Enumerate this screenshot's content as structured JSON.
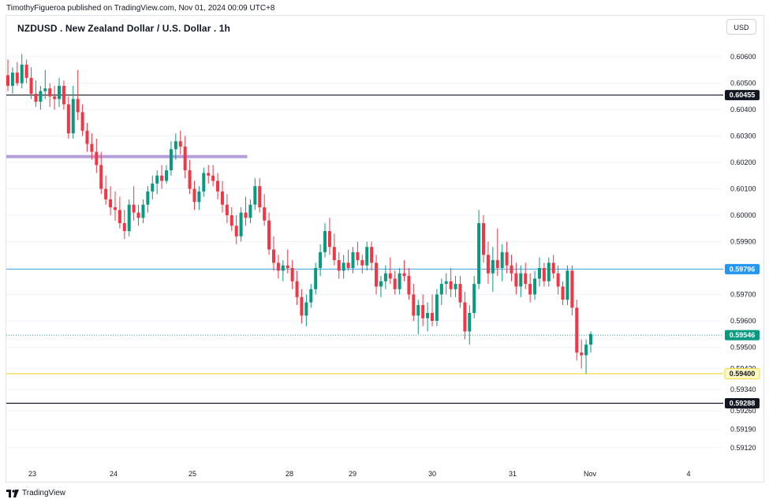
{
  "header": {
    "publish_text": "TimothyFigueroa published on TradingView.com, Nov 01, 2024 00:09 UTC+8",
    "title": "NZDUSD . New Zealand Dollar / U.S. Dollar . 1h",
    "currency": "USD"
  },
  "footer": {
    "brand": "TradingView"
  },
  "colors": {
    "up": "#089981",
    "down": "#f23645",
    "grid": "#f0f3fa",
    "axis_text": "#131722"
  },
  "chart_data": {
    "type": "candlestick",
    "title": "NZDUSD . New Zealand Dollar / U.S. Dollar . 1h",
    "ylim": [
      0.5906,
      0.6063
    ],
    "y_ticks": [
      "0.60600",
      "0.60500",
      "0.60400",
      "0.60300",
      "0.60200",
      "0.60100",
      "0.60000",
      "0.59900",
      "0.59700",
      "0.59600",
      "0.59500",
      "0.59420",
      "0.59340",
      "0.59260",
      "0.59190",
      "0.59120"
    ],
    "x_labels": [
      "23",
      "24",
      "25",
      "28",
      "29",
      "30",
      "31",
      "Nov",
      "4"
    ],
    "horizontal_lines": [
      {
        "name": "resistance-black",
        "price": 0.60455,
        "label": "0.60455",
        "color": "#131722",
        "label_bg": "#131722",
        "label_color": "#ffffff",
        "style": "solid"
      },
      {
        "name": "mid-blue",
        "price": 0.59796,
        "label": "0.59796",
        "color": "#5ab4e6",
        "label_bg": "#2196f3",
        "label_color": "#ffffff",
        "style": "solid"
      },
      {
        "name": "current-price",
        "price": 0.59546,
        "label": "0.59546",
        "color": "#26a69a",
        "label_bg": "#089981",
        "label_color": "#ffffff",
        "style": "dotted"
      },
      {
        "name": "support-yellow",
        "price": 0.594,
        "label": "0.59400",
        "color": "#f5d742",
        "label_bg": "#fff9c4",
        "label_color": "#131722",
        "style": "solid"
      },
      {
        "name": "support-black",
        "price": 0.59288,
        "label": "0.59288",
        "color": "#131722",
        "label_bg": "#131722",
        "label_color": "#ffffff",
        "style": "solid"
      }
    ],
    "segments": [
      {
        "name": "purple-zone",
        "price": 0.60222,
        "from_bar": 0,
        "to_bar": 51,
        "color": "#b39ddb"
      }
    ],
    "candles_ohlc": [
      [
        0.6053,
        0.6059,
        0.6047,
        0.6049
      ],
      [
        0.6049,
        0.6056,
        0.6046,
        0.6054
      ],
      [
        0.6054,
        0.6058,
        0.6049,
        0.605
      ],
      [
        0.605,
        0.6061,
        0.6048,
        0.6057
      ],
      [
        0.6057,
        0.6059,
        0.605,
        0.6052
      ],
      [
        0.6052,
        0.6056,
        0.6044,
        0.6046
      ],
      [
        0.6046,
        0.6051,
        0.6041,
        0.6043
      ],
      [
        0.6043,
        0.6049,
        0.604,
        0.6047
      ],
      [
        0.6047,
        0.6055,
        0.6044,
        0.6048
      ],
      [
        0.6048,
        0.605,
        0.6041,
        0.6045
      ],
      [
        0.6045,
        0.6049,
        0.604,
        0.6044
      ],
      [
        0.6044,
        0.6052,
        0.6041,
        0.6049
      ],
      [
        0.6049,
        0.6051,
        0.604,
        0.6042
      ],
      [
        0.6042,
        0.6045,
        0.6029,
        0.6031
      ],
      [
        0.6031,
        0.6049,
        0.6029,
        0.6044
      ],
      [
        0.6044,
        0.6055,
        0.6036,
        0.6039
      ],
      [
        0.6039,
        0.6042,
        0.603,
        0.6032
      ],
      [
        0.6032,
        0.6035,
        0.6024,
        0.6027
      ],
      [
        0.6027,
        0.6031,
        0.6021,
        0.6024
      ],
      [
        0.6024,
        0.6029,
        0.6016,
        0.6019
      ],
      [
        0.6019,
        0.6024,
        0.6008,
        0.601
      ],
      [
        0.601,
        0.6015,
        0.6004,
        0.6006
      ],
      [
        0.6006,
        0.6011,
        0.6,
        0.6003
      ],
      [
        0.6003,
        0.6009,
        0.5998,
        0.6002
      ],
      [
        0.6002,
        0.6007,
        0.5995,
        0.5997
      ],
      [
        0.5997,
        0.6002,
        0.5991,
        0.5994
      ],
      [
        0.5994,
        0.6006,
        0.5992,
        0.6004
      ],
      [
        0.6004,
        0.6011,
        0.5998,
        0.6001
      ],
      [
        0.6001,
        0.6004,
        0.5996,
        0.5999
      ],
      [
        0.5999,
        0.6006,
        0.5997,
        0.6004
      ],
      [
        0.6004,
        0.6011,
        0.6001,
        0.6009
      ],
      [
        0.6009,
        0.6015,
        0.6006,
        0.6012
      ],
      [
        0.6012,
        0.6017,
        0.6008,
        0.6015
      ],
      [
        0.6015,
        0.6019,
        0.601,
        0.6013
      ],
      [
        0.6013,
        0.6019,
        0.6012,
        0.6017
      ],
      [
        0.6017,
        0.6028,
        0.6015,
        0.6025
      ],
      [
        0.6025,
        0.6031,
        0.6021,
        0.6028
      ],
      [
        0.6028,
        0.6032,
        0.6023,
        0.6026
      ],
      [
        0.6026,
        0.603,
        0.6014,
        0.6017
      ],
      [
        0.6017,
        0.6021,
        0.6008,
        0.601
      ],
      [
        0.601,
        0.6013,
        0.6002,
        0.6005
      ],
      [
        0.6005,
        0.6011,
        0.6002,
        0.6009
      ],
      [
        0.6009,
        0.6018,
        0.6007,
        0.6016
      ],
      [
        0.6016,
        0.6019,
        0.6012,
        0.6015
      ],
      [
        0.6015,
        0.6019,
        0.6011,
        0.6013
      ],
      [
        0.6013,
        0.6016,
        0.6006,
        0.6009
      ],
      [
        0.6009,
        0.6013,
        0.6001,
        0.6004
      ],
      [
        0.6004,
        0.6008,
        0.5997,
        0.6
      ],
      [
        0.6,
        0.6003,
        0.5994,
        0.5996
      ],
      [
        0.5996,
        0.6,
        0.5989,
        0.5992
      ],
      [
        0.5992,
        0.6003,
        0.599,
        0.6001
      ],
      [
        0.6001,
        0.6007,
        0.5996,
        0.5999
      ],
      [
        0.5999,
        0.6006,
        0.5997,
        0.6004
      ],
      [
        0.6004,
        0.6014,
        0.6002,
        0.6011
      ],
      [
        0.6011,
        0.6014,
        0.6001,
        0.6003
      ],
      [
        0.6003,
        0.6008,
        0.5996,
        0.5998
      ],
      [
        0.5998,
        0.6001,
        0.5985,
        0.5987
      ],
      [
        0.5987,
        0.5992,
        0.5979,
        0.5982
      ],
      [
        0.5982,
        0.5985,
        0.5976,
        0.5979
      ],
      [
        0.5979,
        0.5983,
        0.5975,
        0.5981
      ],
      [
        0.5981,
        0.5987,
        0.5978,
        0.598
      ],
      [
        0.598,
        0.5983,
        0.5972,
        0.5975
      ],
      [
        0.5975,
        0.5979,
        0.5966,
        0.5969
      ],
      [
        0.5969,
        0.5972,
        0.5959,
        0.5962
      ],
      [
        0.5962,
        0.597,
        0.5958,
        0.5967
      ],
      [
        0.5967,
        0.5974,
        0.5965,
        0.5972
      ],
      [
        0.5972,
        0.5982,
        0.597,
        0.598
      ],
      [
        0.598,
        0.5989,
        0.5977,
        0.5986
      ],
      [
        0.5986,
        0.5997,
        0.5984,
        0.5994
      ],
      [
        0.5994,
        0.5999,
        0.5985,
        0.5988
      ],
      [
        0.5988,
        0.5993,
        0.5981,
        0.5983
      ],
      [
        0.5983,
        0.5986,
        0.5976,
        0.5979
      ],
      [
        0.5979,
        0.5985,
        0.5976,
        0.5982
      ],
      [
        0.5982,
        0.5987,
        0.5979,
        0.598
      ],
      [
        0.598,
        0.5988,
        0.5978,
        0.5986
      ],
      [
        0.5986,
        0.599,
        0.5981,
        0.5983
      ],
      [
        0.5983,
        0.5985,
        0.5978,
        0.5981
      ],
      [
        0.5981,
        0.599,
        0.5979,
        0.5988
      ],
      [
        0.5988,
        0.599,
        0.5979,
        0.5982
      ],
      [
        0.5982,
        0.5985,
        0.597,
        0.5973
      ],
      [
        0.5973,
        0.5977,
        0.5969,
        0.5975
      ],
      [
        0.5975,
        0.5981,
        0.5972,
        0.5978
      ],
      [
        0.5978,
        0.5984,
        0.5974,
        0.5976
      ],
      [
        0.5976,
        0.5979,
        0.597,
        0.5972
      ],
      [
        0.5972,
        0.598,
        0.597,
        0.5978
      ],
      [
        0.5978,
        0.5983,
        0.5975,
        0.5977
      ],
      [
        0.5977,
        0.598,
        0.5968,
        0.597
      ],
      [
        0.597,
        0.5974,
        0.596,
        0.5962
      ],
      [
        0.5962,
        0.5968,
        0.5955,
        0.5966
      ],
      [
        0.5966,
        0.597,
        0.5958,
        0.5961
      ],
      [
        0.5961,
        0.5967,
        0.5956,
        0.5963
      ],
      [
        0.5963,
        0.597,
        0.5958,
        0.596
      ],
      [
        0.596,
        0.5972,
        0.5958,
        0.597
      ],
      [
        0.597,
        0.5976,
        0.5966,
        0.5974
      ],
      [
        0.5974,
        0.5978,
        0.597,
        0.5975
      ],
      [
        0.5975,
        0.598,
        0.5969,
        0.5972
      ],
      [
        0.5972,
        0.5977,
        0.5969,
        0.5974
      ],
      [
        0.5974,
        0.5977,
        0.5965,
        0.5967
      ],
      [
        0.5967,
        0.5971,
        0.5953,
        0.5956
      ],
      [
        0.5956,
        0.5966,
        0.5951,
        0.5963
      ],
      [
        0.5963,
        0.5977,
        0.5961,
        0.5974
      ],
      [
        0.5974,
        0.6002,
        0.5972,
        0.5997
      ],
      [
        0.5997,
        0.6,
        0.5982,
        0.5985
      ],
      [
        0.5985,
        0.599,
        0.5974,
        0.5978
      ],
      [
        0.5978,
        0.5988,
        0.5971,
        0.5983
      ],
      [
        0.5983,
        0.5995,
        0.5977,
        0.598
      ],
      [
        0.598,
        0.5989,
        0.5975,
        0.5986
      ],
      [
        0.5986,
        0.599,
        0.5978,
        0.5981
      ],
      [
        0.5981,
        0.5985,
        0.5975,
        0.5978
      ],
      [
        0.5978,
        0.5982,
        0.597,
        0.5973
      ],
      [
        0.5973,
        0.5981,
        0.5969,
        0.5978
      ],
      [
        0.5978,
        0.5982,
        0.5972,
        0.5974
      ],
      [
        0.5974,
        0.5978,
        0.5967,
        0.597
      ],
      [
        0.597,
        0.5979,
        0.5968,
        0.5976
      ],
      [
        0.5976,
        0.5984,
        0.5973,
        0.598
      ],
      [
        0.598,
        0.5982,
        0.5973,
        0.5975
      ],
      [
        0.5975,
        0.5984,
        0.5973,
        0.5982
      ],
      [
        0.5982,
        0.5985,
        0.5976,
        0.5978
      ],
      [
        0.5978,
        0.5981,
        0.597,
        0.5973
      ],
      [
        0.5973,
        0.5975,
        0.5966,
        0.5968
      ],
      [
        0.5968,
        0.5981,
        0.5966,
        0.5979
      ],
      [
        0.5979,
        0.5981,
        0.5962,
        0.5965
      ],
      [
        0.5965,
        0.5968,
        0.5945,
        0.5948
      ],
      [
        0.5948,
        0.5953,
        0.5942,
        0.5947
      ],
      [
        0.5947,
        0.5953,
        0.594,
        0.5951
      ],
      [
        0.5951,
        0.5956,
        0.5948,
        0.5955
      ]
    ]
  }
}
